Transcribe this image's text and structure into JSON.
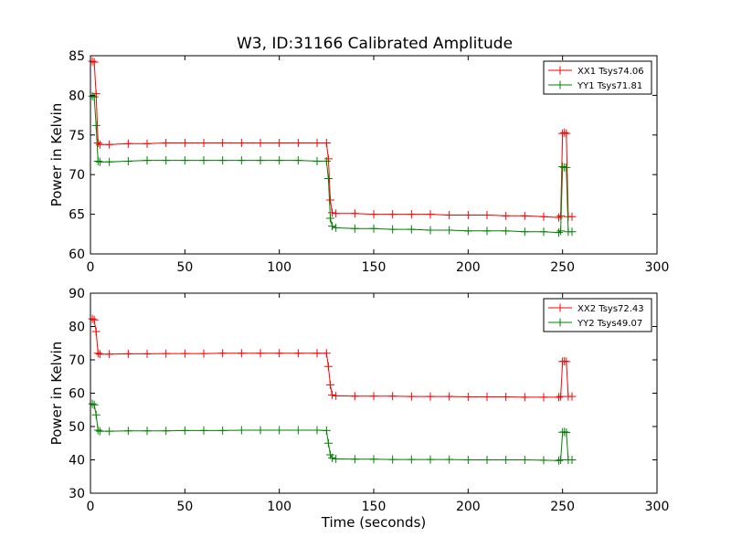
{
  "figure_title": "W3, ID:31166 Calibrated Amplitude",
  "chart_data": [
    {
      "type": "line",
      "title": "W3, ID:31166 Calibrated Amplitude",
      "xlabel": "",
      "ylabel": "Power in Kelvin",
      "xlim": [
        0,
        300
      ],
      "ylim": [
        60,
        85
      ],
      "xticks": [
        0,
        50,
        100,
        150,
        200,
        250,
        300
      ],
      "yticks": [
        60,
        65,
        70,
        75,
        80,
        85
      ],
      "grid": false,
      "legend_position": "top-right",
      "series": [
        {
          "name": "XX1 Tsys74.06",
          "color": "#ff0000",
          "points": [
            [
              1,
              84.3
            ],
            [
              2,
              84.2
            ],
            [
              3,
              80.2
            ],
            [
              4,
              74.0
            ],
            [
              5,
              73.8
            ],
            [
              10,
              73.8
            ],
            [
              20,
              73.9
            ],
            [
              30,
              73.9
            ],
            [
              40,
              74.0
            ],
            [
              50,
              74.0
            ],
            [
              60,
              74.0
            ],
            [
              70,
              74.0
            ],
            [
              80,
              74.0
            ],
            [
              90,
              74.0
            ],
            [
              100,
              74.0
            ],
            [
              110,
              74.0
            ],
            [
              120,
              74.0
            ],
            [
              125,
              74.0
            ],
            [
              126,
              72.0
            ],
            [
              127,
              66.8
            ],
            [
              128,
              65.2
            ],
            [
              130,
              65.1
            ],
            [
              140,
              65.1
            ],
            [
              150,
              65.0
            ],
            [
              160,
              65.0
            ],
            [
              170,
              65.0
            ],
            [
              180,
              65.0
            ],
            [
              190,
              64.9
            ],
            [
              200,
              64.9
            ],
            [
              210,
              64.9
            ],
            [
              220,
              64.8
            ],
            [
              230,
              64.8
            ],
            [
              240,
              64.7
            ],
            [
              248,
              64.6
            ],
            [
              249,
              64.8
            ],
            [
              250,
              75.2
            ],
            [
              251,
              75.3
            ],
            [
              252,
              75.2
            ],
            [
              253,
              64.7
            ],
            [
              255,
              64.7
            ]
          ]
        },
        {
          "name": "YY1 Tsys71.81",
          "color": "#008000",
          "points": [
            [
              1,
              79.9
            ],
            [
              2,
              79.8
            ],
            [
              3,
              76.2
            ],
            [
              4,
              71.7
            ],
            [
              5,
              71.6
            ],
            [
              10,
              71.6
            ],
            [
              20,
              71.7
            ],
            [
              30,
              71.8
            ],
            [
              40,
              71.8
            ],
            [
              50,
              71.8
            ],
            [
              60,
              71.8
            ],
            [
              70,
              71.8
            ],
            [
              80,
              71.8
            ],
            [
              90,
              71.8
            ],
            [
              100,
              71.8
            ],
            [
              110,
              71.8
            ],
            [
              120,
              71.7
            ],
            [
              125,
              71.7
            ],
            [
              126,
              69.5
            ],
            [
              127,
              64.5
            ],
            [
              128,
              63.5
            ],
            [
              130,
              63.3
            ],
            [
              140,
              63.2
            ],
            [
              150,
              63.2
            ],
            [
              160,
              63.1
            ],
            [
              170,
              63.1
            ],
            [
              180,
              63.0
            ],
            [
              190,
              63.0
            ],
            [
              200,
              62.9
            ],
            [
              210,
              62.9
            ],
            [
              220,
              62.9
            ],
            [
              230,
              62.8
            ],
            [
              240,
              62.8
            ],
            [
              248,
              62.7
            ],
            [
              249,
              62.9
            ],
            [
              250,
              71.0
            ],
            [
              251,
              70.9
            ],
            [
              252,
              70.9
            ],
            [
              253,
              62.8
            ],
            [
              255,
              62.8
            ]
          ]
        }
      ]
    },
    {
      "type": "line",
      "title": "",
      "xlabel": "Time (seconds)",
      "ylabel": "Power in Kelvin",
      "xlim": [
        0,
        300
      ],
      "ylim": [
        30,
        90
      ],
      "xticks": [
        0,
        50,
        100,
        150,
        200,
        250,
        300
      ],
      "yticks": [
        30,
        40,
        50,
        60,
        70,
        80,
        90
      ],
      "grid": false,
      "legend_position": "top-right",
      "series": [
        {
          "name": "XX2 Tsys72.43",
          "color": "#ff0000",
          "points": [
            [
              1,
              82.3
            ],
            [
              2,
              82.0
            ],
            [
              3,
              78.5
            ],
            [
              4,
              72.0
            ],
            [
              5,
              71.7
            ],
            [
              10,
              71.7
            ],
            [
              20,
              71.8
            ],
            [
              30,
              71.8
            ],
            [
              40,
              71.9
            ],
            [
              50,
              71.9
            ],
            [
              60,
              71.9
            ],
            [
              70,
              72.0
            ],
            [
              80,
              72.0
            ],
            [
              90,
              72.0
            ],
            [
              100,
              72.0
            ],
            [
              110,
              72.0
            ],
            [
              120,
              72.0
            ],
            [
              125,
              72.0
            ],
            [
              126,
              68.0
            ],
            [
              127,
              62.5
            ],
            [
              128,
              59.5
            ],
            [
              130,
              59.2
            ],
            [
              140,
              59.1
            ],
            [
              150,
              59.1
            ],
            [
              160,
              59.1
            ],
            [
              170,
              59.0
            ],
            [
              180,
              59.0
            ],
            [
              190,
              59.0
            ],
            [
              200,
              58.9
            ],
            [
              210,
              58.9
            ],
            [
              220,
              58.9
            ],
            [
              230,
              58.8
            ],
            [
              240,
              58.8
            ],
            [
              248,
              58.8
            ],
            [
              249,
              59.0
            ],
            [
              250,
              69.5
            ],
            [
              251,
              69.6
            ],
            [
              252,
              69.5
            ],
            [
              253,
              59.0
            ],
            [
              255,
              59.0
            ]
          ]
        },
        {
          "name": "YY2 Tsys49.07",
          "color": "#008000",
          "points": [
            [
              1,
              56.8
            ],
            [
              2,
              56.5
            ],
            [
              3,
              53.5
            ],
            [
              4,
              48.9
            ],
            [
              5,
              48.6
            ],
            [
              10,
              48.6
            ],
            [
              20,
              48.7
            ],
            [
              30,
              48.7
            ],
            [
              40,
              48.7
            ],
            [
              50,
              48.8
            ],
            [
              60,
              48.8
            ],
            [
              70,
              48.8
            ],
            [
              80,
              48.9
            ],
            [
              90,
              48.9
            ],
            [
              100,
              48.9
            ],
            [
              110,
              48.9
            ],
            [
              120,
              48.9
            ],
            [
              125,
              48.8
            ],
            [
              126,
              45.0
            ],
            [
              127,
              41.5
            ],
            [
              128,
              40.6
            ],
            [
              130,
              40.3
            ],
            [
              140,
              40.2
            ],
            [
              150,
              40.2
            ],
            [
              160,
              40.1
            ],
            [
              170,
              40.1
            ],
            [
              180,
              40.1
            ],
            [
              190,
              40.1
            ],
            [
              200,
              40.0
            ],
            [
              210,
              40.0
            ],
            [
              220,
              40.0
            ],
            [
              230,
              40.0
            ],
            [
              240,
              39.9
            ],
            [
              248,
              39.8
            ],
            [
              249,
              40.0
            ],
            [
              250,
              48.3
            ],
            [
              251,
              48.4
            ],
            [
              252,
              48.2
            ],
            [
              253,
              40.0
            ],
            [
              255,
              40.0
            ]
          ]
        }
      ]
    }
  ]
}
